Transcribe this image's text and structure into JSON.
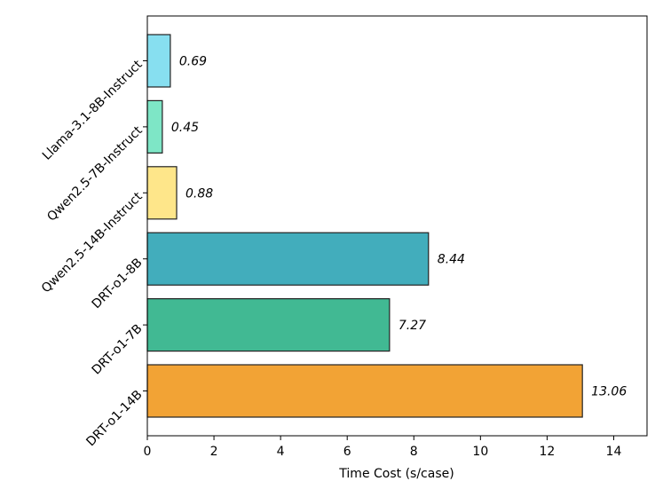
{
  "chart_data": {
    "type": "bar",
    "orientation": "horizontal",
    "categories": [
      "Llama-3.1-8B-Instruct",
      "Qwen2.5-7B-Instruct",
      "Qwen2.5-14B-Instruct",
      "DRT-o1-8B",
      "DRT-o1-7B",
      "DRT-o1-14B"
    ],
    "values": [
      0.69,
      0.45,
      0.88,
      8.44,
      7.27,
      13.06
    ],
    "value_labels": [
      "0.69",
      "0.45",
      "0.88",
      "8.44",
      "7.27",
      "13.06"
    ],
    "colors": [
      "#87dff0",
      "#7ee6c6",
      "#fee68a",
      "#42adbc",
      "#41b993",
      "#f2a335"
    ],
    "title": "",
    "xlabel": "Time Cost (s/case)",
    "ylabel": "",
    "xlim": [
      0,
      15
    ],
    "xticks": [
      0,
      2,
      4,
      6,
      8,
      10,
      12,
      14
    ],
    "xtick_labels": [
      "0",
      "2",
      "4",
      "6",
      "8",
      "10",
      "12",
      "14"
    ],
    "grid": false
  }
}
